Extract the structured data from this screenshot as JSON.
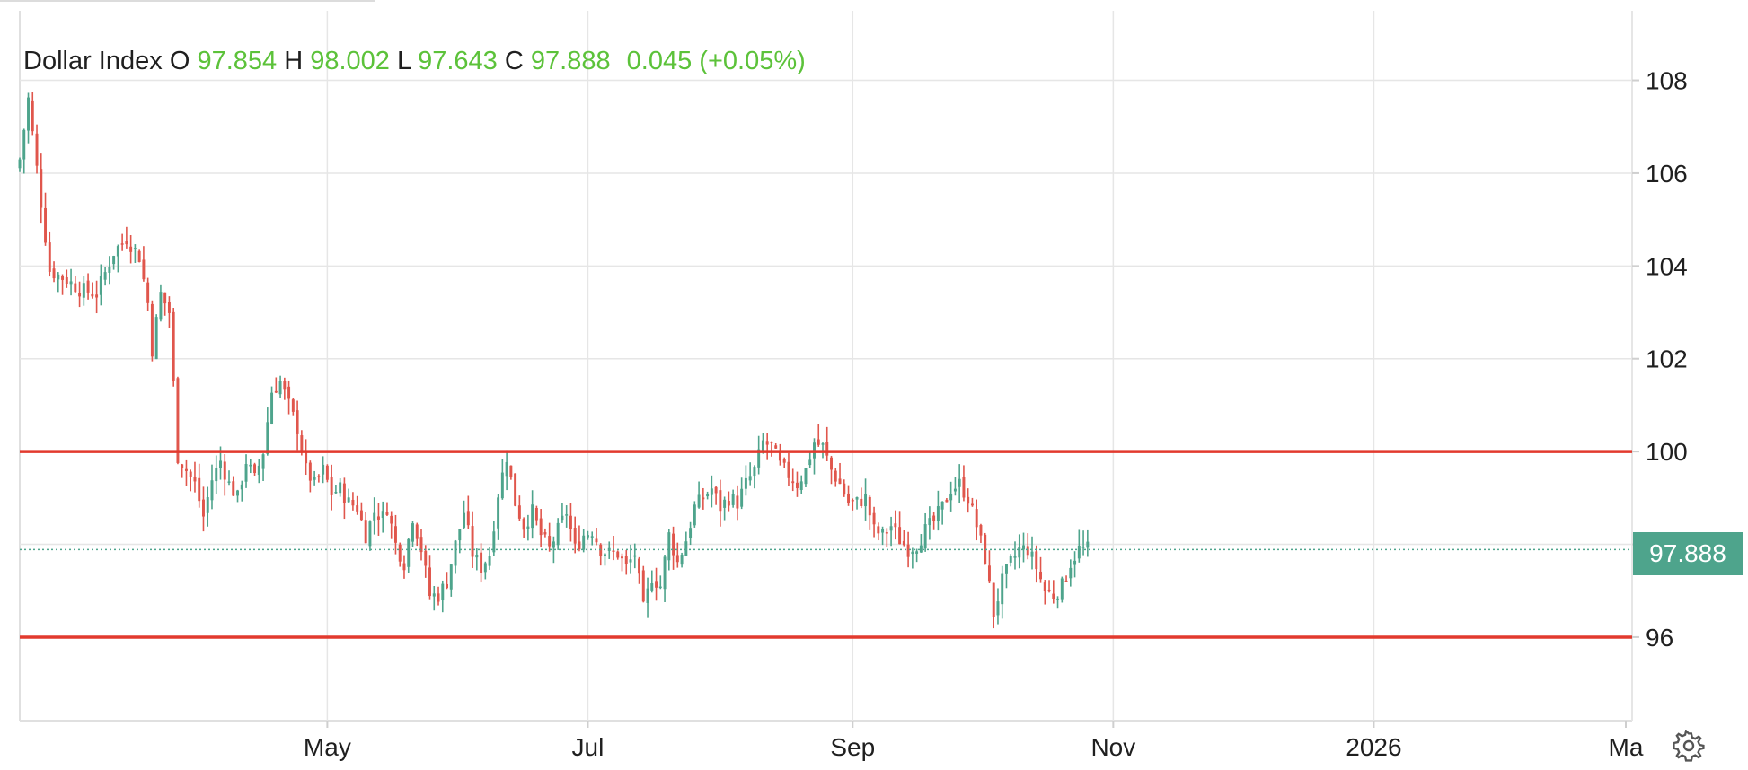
{
  "legend": {
    "name": "Dollar Index",
    "o_label": "O",
    "open": "97.854",
    "h_label": "H",
    "high": "98.002",
    "l_label": "L",
    "low": "97.643",
    "c_label": "C",
    "close": "97.888",
    "change": "0.045 (+0.05%)"
  },
  "last_price_label": "97.888",
  "colors": {
    "up": "#4ea48c",
    "down": "#e0564c",
    "hline": "#e23a2e",
    "grid": "#e6e6e6",
    "last_price": "#4ea48c"
  },
  "chart_data": {
    "type": "candlestick",
    "ylim": [
      94.2,
      109.5
    ],
    "y_ticks": [
      96,
      98,
      100,
      102,
      104,
      106,
      108
    ],
    "y_tick_labels": [
      "96",
      "",
      "100",
      "102",
      "104",
      "106",
      "108"
    ],
    "x_ticks": [
      {
        "label": "May",
        "day": 46
      },
      {
        "label": "Jul",
        "day": 107
      },
      {
        "label": "Sep",
        "day": 169
      },
      {
        "label": "Nov",
        "day": 230
      },
      {
        "label": "2026",
        "day": 291
      },
      {
        "label": "Ma",
        "day": 350
      }
    ],
    "day_range": [
      -26,
      350
    ],
    "last_price": 97.888,
    "horizontal_lines": [
      100,
      96
    ],
    "anchors": [
      [
        -26,
        106.3
      ],
      [
        -24,
        107.6
      ],
      [
        -22,
        106.1
      ],
      [
        -19,
        103.9
      ],
      [
        -15,
        103.7
      ],
      [
        -12,
        103.5
      ],
      [
        -8,
        103.4
      ],
      [
        -4,
        104.3
      ],
      [
        -1,
        104.6
      ],
      [
        2,
        104.2
      ],
      [
        4,
        103.2
      ],
      [
        5,
        102.2
      ],
      [
        7,
        103.4
      ],
      [
        9,
        103.0
      ],
      [
        11,
        99.9
      ],
      [
        13,
        99.6
      ],
      [
        15,
        99.3
      ],
      [
        17,
        98.6
      ],
      [
        19,
        99.4
      ],
      [
        21,
        99.8
      ],
      [
        23,
        99.3
      ],
      [
        25,
        99.0
      ],
      [
        27,
        99.8
      ],
      [
        29,
        99.4
      ],
      [
        31,
        100.0
      ],
      [
        33,
        101.3
      ],
      [
        35,
        101.5
      ],
      [
        37,
        101.0
      ],
      [
        39,
        100.5
      ],
      [
        41,
        99.6
      ],
      [
        43,
        99.3
      ],
      [
        45,
        99.6
      ],
      [
        47,
        99.1
      ],
      [
        49,
        99.2
      ],
      [
        51,
        98.9
      ],
      [
        53,
        98.8
      ],
      [
        55,
        98.2
      ],
      [
        57,
        98.7
      ],
      [
        59,
        98.6
      ],
      [
        60,
        98.8
      ],
      [
        62,
        98.0
      ],
      [
        64,
        97.6
      ],
      [
        66,
        98.6
      ],
      [
        68,
        97.9
      ],
      [
        70,
        96.9
      ],
      [
        72,
        96.9
      ],
      [
        74,
        97.2
      ],
      [
        76,
        98.0
      ],
      [
        78,
        98.7
      ],
      [
        80,
        97.8
      ],
      [
        82,
        97.5
      ],
      [
        84,
        97.8
      ],
      [
        86,
        99.1
      ],
      [
        88,
        99.9
      ],
      [
        90,
        98.9
      ],
      [
        92,
        98.4
      ],
      [
        94,
        98.7
      ],
      [
        96,
        98.2
      ],
      [
        98,
        97.9
      ],
      [
        100,
        98.3
      ],
      [
        102,
        98.7
      ],
      [
        104,
        97.9
      ],
      [
        106,
        98.2
      ],
      [
        108,
        98.3
      ],
      [
        110,
        97.9
      ],
      [
        112,
        97.8
      ],
      [
        114,
        97.8
      ],
      [
        116,
        97.5
      ],
      [
        118,
        97.8
      ],
      [
        120,
        96.6
      ],
      [
        122,
        97.3
      ],
      [
        124,
        97.1
      ],
      [
        126,
        98.2
      ],
      [
        128,
        97.6
      ],
      [
        130,
        98.1
      ],
      [
        132,
        98.8
      ],
      [
        134,
        99.0
      ],
      [
        136,
        99.2
      ],
      [
        138,
        98.8
      ],
      [
        140,
        99.0
      ],
      [
        142,
        98.9
      ],
      [
        144,
        99.3
      ],
      [
        146,
        99.6
      ],
      [
        148,
        100.2
      ],
      [
        150,
        100.1
      ],
      [
        152,
        99.7
      ],
      [
        154,
        99.5
      ],
      [
        156,
        99.3
      ],
      [
        158,
        99.6
      ],
      [
        160,
        100.2
      ],
      [
        162,
        100.1
      ],
      [
        164,
        99.6
      ],
      [
        166,
        99.3
      ],
      [
        168,
        98.9
      ],
      [
        170,
        98.9
      ],
      [
        172,
        99.0
      ],
      [
        174,
        98.3
      ],
      [
        176,
        98.2
      ],
      [
        178,
        98.4
      ],
      [
        180,
        98.1
      ],
      [
        182,
        97.9
      ],
      [
        184,
        98.0
      ],
      [
        186,
        98.3
      ],
      [
        188,
        98.5
      ],
      [
        190,
        98.8
      ],
      [
        192,
        99.2
      ],
      [
        194,
        99.3
      ],
      [
        196,
        99.0
      ],
      [
        198,
        98.4
      ],
      [
        200,
        97.7
      ],
      [
        202,
        96.5
      ],
      [
        204,
        97.2
      ],
      [
        206,
        97.6
      ],
      [
        208,
        97.9
      ],
      [
        210,
        97.9
      ],
      [
        212,
        97.5
      ],
      [
        214,
        97.0
      ],
      [
        216,
        96.9
      ],
      [
        218,
        97.1
      ],
      [
        220,
        97.6
      ],
      [
        222,
        97.9
      ],
      [
        224,
        97.9
      ]
    ]
  }
}
